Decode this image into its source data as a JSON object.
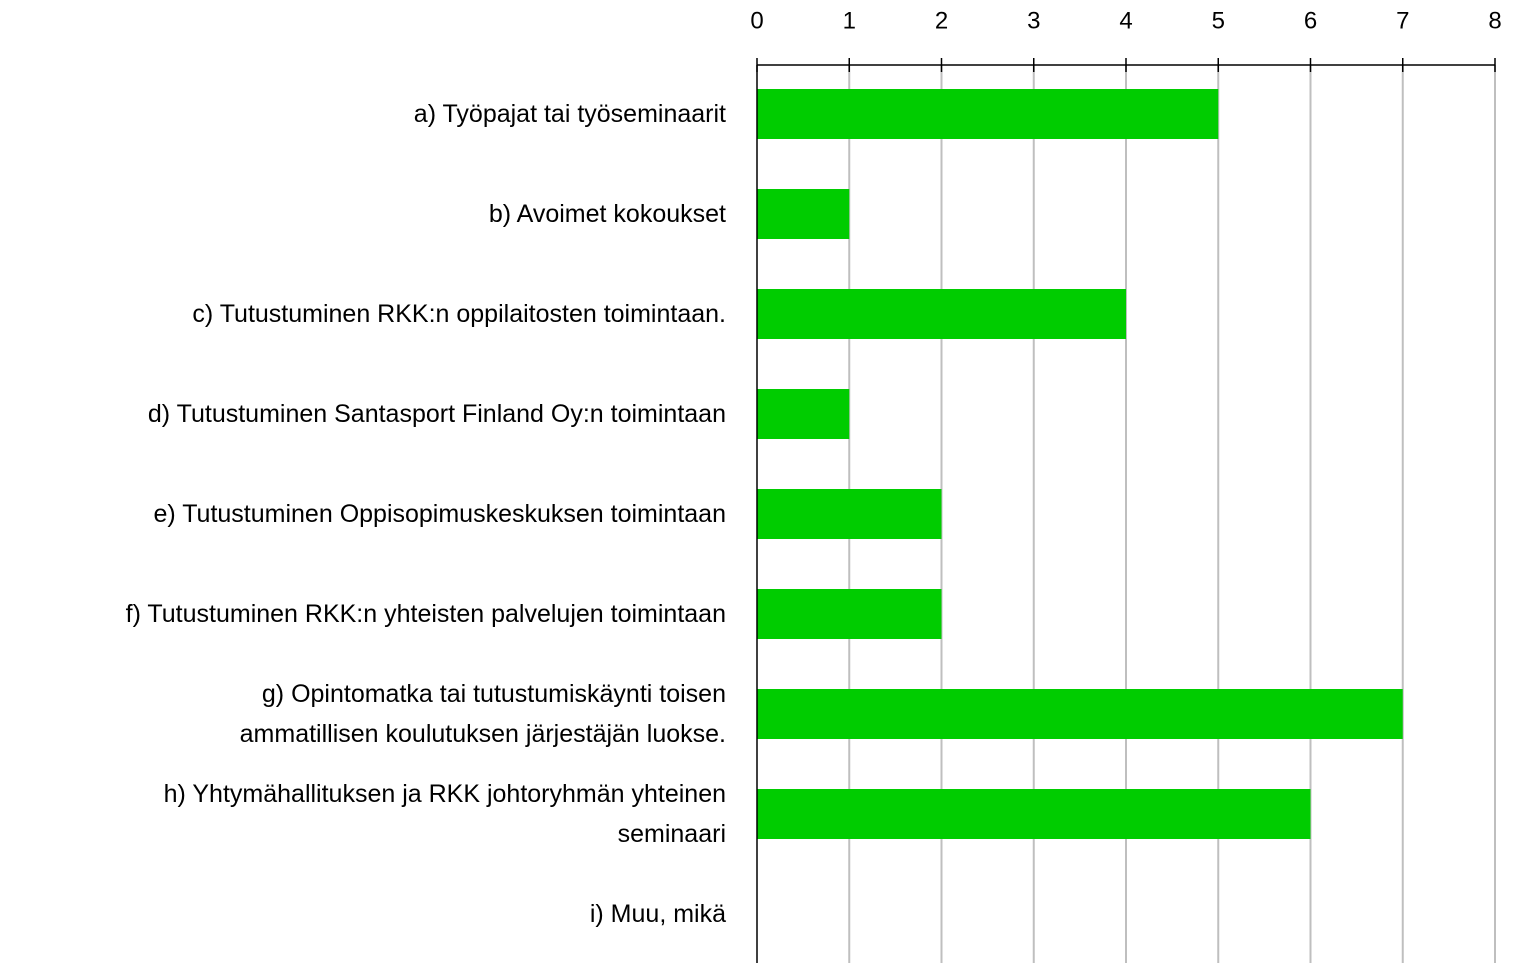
{
  "chart_data": {
    "type": "bar",
    "orientation": "horizontal",
    "categories": [
      "a) Työpajat tai työseminaarit",
      "b) Avoimet kokoukset",
      "c) Tutustuminen RKK:n oppilaitosten toimintaan.",
      "d) Tutustuminen Santasport Finland Oy:n toimintaan",
      "e) Tutustuminen Oppisopimuskeskuksen toimintaan",
      "f) Tutustuminen RKK:n yhteisten palvelujen toimintaan",
      "g) Opintomatka tai tutustumiskäynti toisen\nammatillisen koulutuksen järjestäjän luokse.",
      "h) Yhtymähallituksen ja RKK johtoryhmän yhteinen\nseminaari",
      "i) Muu, mikä"
    ],
    "values": [
      5,
      1,
      4,
      1,
      2,
      2,
      7,
      6,
      0
    ],
    "color": "#00cc00",
    "xlim": [
      0,
      8
    ],
    "xticks": [
      0,
      1,
      2,
      3,
      4,
      5,
      6,
      7,
      8
    ],
    "grid": true
  }
}
